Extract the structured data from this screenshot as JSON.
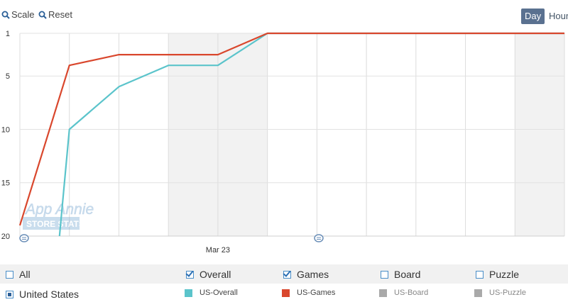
{
  "toolbar": {
    "scale_label": "Scale",
    "reset_label": "Reset",
    "day_label": "Day",
    "hour_label": "Hour"
  },
  "legend": {
    "filters": [
      {
        "label": "All",
        "checked": false
      },
      {
        "label": "Overall",
        "checked": true
      },
      {
        "label": "Games",
        "checked": true
      },
      {
        "label": "Board",
        "checked": false
      },
      {
        "label": "Puzzle",
        "checked": false
      }
    ],
    "country": "United States",
    "series": [
      {
        "label": "US-Overall",
        "color": "#5bc4cb",
        "active": true
      },
      {
        "label": "US-Games",
        "color": "#d9472d",
        "active": true
      },
      {
        "label": "US-Board",
        "color": "#a9a9a9",
        "active": false
      },
      {
        "label": "US-Puzzle",
        "color": "#a9a9a9",
        "active": false
      }
    ]
  },
  "watermark": {
    "line1": "App Annie",
    "line2": "STORE STATS"
  },
  "chart_data": {
    "type": "line",
    "y_reversed": true,
    "ylim": [
      1,
      20
    ],
    "y_ticks": [
      1,
      5,
      10,
      15,
      20
    ],
    "x_tick_labels": [
      "Mar 23"
    ],
    "x_days": 11,
    "x_tick_day": 4,
    "shaded_days": [
      [
        3,
        5
      ],
      [
        10,
        11
      ]
    ],
    "grid": true,
    "series": [
      {
        "name": "US-Overall",
        "color": "#5bc4cb",
        "points": [
          [
            0.8,
            20
          ],
          [
            1,
            10
          ],
          [
            2,
            6
          ],
          [
            3,
            4
          ],
          [
            4,
            4
          ],
          [
            5,
            1
          ],
          [
            6,
            1
          ],
          [
            7,
            1
          ],
          [
            8,
            1
          ],
          [
            9,
            1
          ],
          [
            10,
            1
          ],
          [
            11,
            1
          ]
        ]
      },
      {
        "name": "US-Games",
        "color": "#d9472d",
        "points": [
          [
            0,
            19
          ],
          [
            1,
            4
          ],
          [
            2,
            3
          ],
          [
            3,
            3
          ],
          [
            4,
            3
          ],
          [
            5,
            1
          ],
          [
            6,
            1
          ],
          [
            7,
            1
          ],
          [
            8,
            1
          ],
          [
            9,
            1
          ],
          [
            10,
            1
          ],
          [
            11,
            1
          ]
        ]
      }
    ]
  }
}
